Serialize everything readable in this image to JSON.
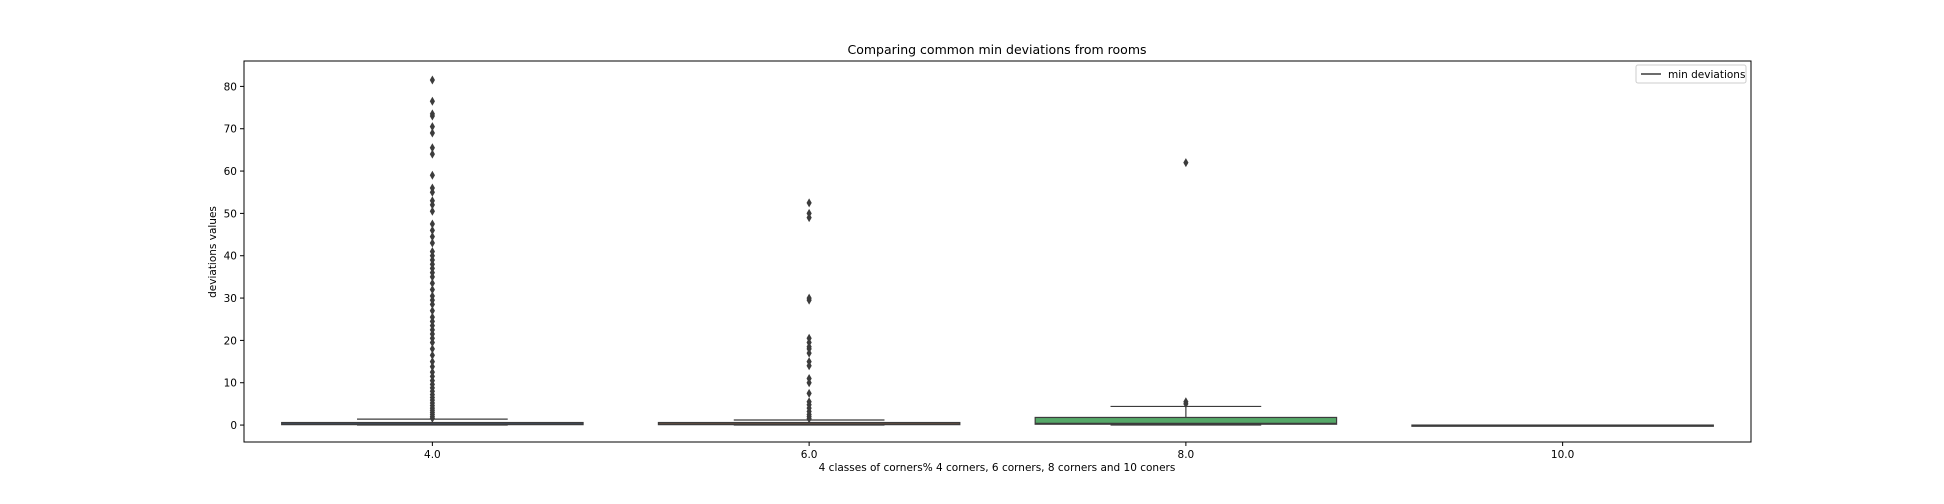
{
  "chart_data": {
    "type": "box",
    "title": "Comparing common min deviations from rooms",
    "xlabel": "4 classes of corners% 4 corners, 6 corners, 8 corners and 10 coners",
    "ylabel": "deviations values",
    "ylim": [
      -4,
      86
    ],
    "yticks": [
      0,
      10,
      20,
      30,
      40,
      50,
      60,
      70,
      80
    ],
    "categories": [
      "4.0",
      "6.0",
      "8.0",
      "10.0"
    ],
    "legend": {
      "label": "min deviations",
      "position": "top-right"
    },
    "grid": false,
    "boxes": [
      {
        "category": "4.0",
        "color": "#4c72b0",
        "min": 0,
        "q1": 0.1,
        "median": 0.3,
        "q3": 0.6,
        "whisker_high": 1.4,
        "outliers": [
          1.6,
          2.0,
          2.5,
          3.0,
          3.5,
          4.0,
          4.6,
          5.2,
          5.9,
          6.5,
          7.2,
          8.0,
          8.8,
          9.6,
          10.5,
          11.5,
          12.5,
          13.8,
          15.0,
          16.5,
          18.0,
          19.5,
          20.5,
          21.5,
          22.5,
          23.5,
          24.5,
          25.5,
          27.0,
          28.5,
          29.5,
          30.5,
          32.0,
          33.5,
          35.0,
          36.0,
          37.0,
          38.0,
          39.0,
          40.0,
          41.0,
          43.0,
          44.5,
          46.0,
          47.5,
          50.5,
          52.0,
          53.0,
          55.0,
          56.0,
          59.0,
          64.0,
          65.5,
          69.0,
          70.5,
          73.0,
          73.5,
          76.5,
          81.5
        ]
      },
      {
        "category": "6.0",
        "color": "#dd8452",
        "min": 0,
        "q1": 0.1,
        "median": 0.3,
        "q3": 0.6,
        "whisker_high": 1.2,
        "outliers": [
          1.5,
          2.0,
          2.5,
          3.2,
          4.0,
          4.8,
          5.5,
          7.5,
          10.0,
          11.0,
          14.0,
          15.0,
          17.0,
          18.0,
          18.5,
          19.5,
          20.5,
          29.5,
          30.0,
          49.0,
          50.0,
          52.5
        ]
      },
      {
        "category": "8.0",
        "color": "#55a868",
        "min": 0,
        "q1": 0.2,
        "median": 0.4,
        "q3": 1.8,
        "whisker_high": 4.4,
        "outliers": [
          5.0,
          5.5,
          62.0
        ]
      },
      {
        "category": "10.0",
        "color": "#c44e52",
        "min": 0,
        "q1": 0,
        "median": 0,
        "q3": 0,
        "whisker_high": 0,
        "outliers": []
      }
    ]
  }
}
